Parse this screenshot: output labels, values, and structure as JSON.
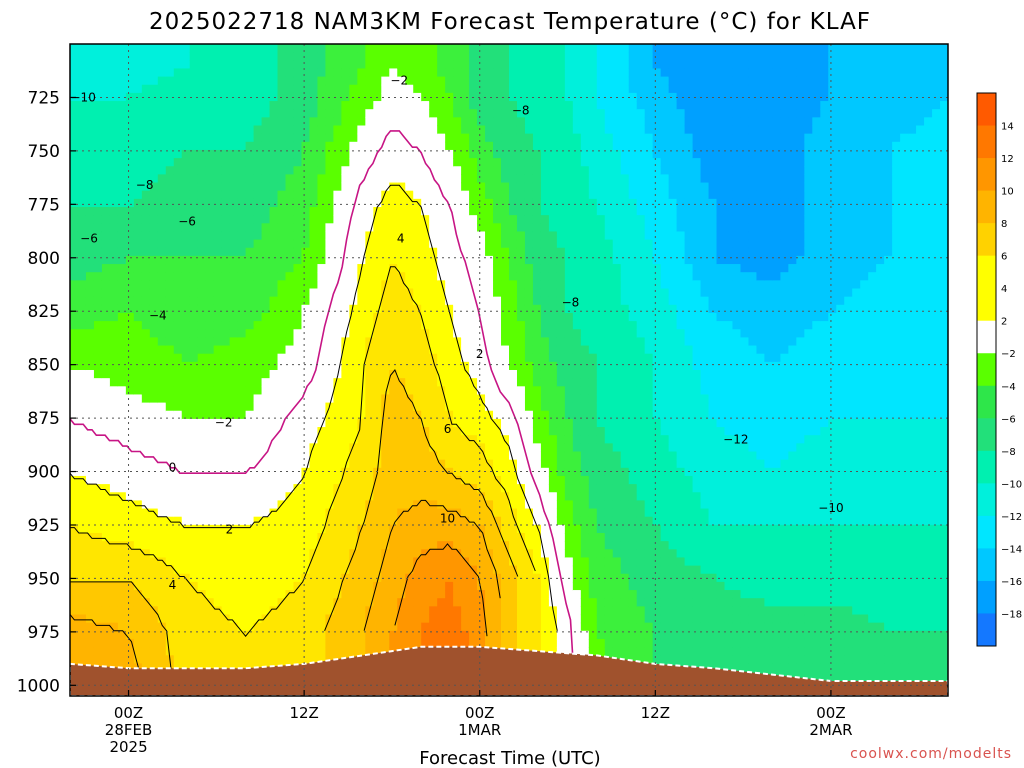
{
  "chart_data": {
    "type": "heatmap",
    "title": "2025022718 NAM3KM Forecast Temperature (°C) for KLAF",
    "xlabel": "Forecast Time (UTC)",
    "ylabel": "",
    "y_ticks": [
      "725",
      "750",
      "775",
      "800",
      "825",
      "850",
      "875",
      "900",
      "925",
      "950",
      "975",
      "1000"
    ],
    "y_range": [
      1005,
      700
    ],
    "x_range_hours": [
      -4,
      56
    ],
    "x_ticks": [
      {
        "hour": 0,
        "lines": [
          "00Z",
          "28FEB",
          "2025"
        ]
      },
      {
        "hour": 12,
        "lines": [
          "12Z"
        ]
      },
      {
        "hour": 24,
        "lines": [
          "00Z",
          "1MAR"
        ]
      },
      {
        "hour": 36,
        "lines": [
          "12Z"
        ]
      },
      {
        "hour": 48,
        "lines": [
          "00Z",
          "2MAR"
        ]
      }
    ],
    "colorbar": {
      "labels": [
        "14",
        "12",
        "10",
        "8",
        "6",
        "4",
        "2",
        "−2",
        "−4",
        "−6",
        "−8",
        "−10",
        "−12",
        "−14",
        "−16",
        "−18"
      ],
      "colors": [
        "#ff5a00",
        "#ff7800",
        "#ff9600",
        "#ffb400",
        "#ffd200",
        "#ffff00",
        "#ffff00",
        "#ffffff",
        "#5aff00",
        "#2ee64a",
        "#22e07a",
        "#00f0b0",
        "#00f0dc",
        "#00e6ff",
        "#00c8ff",
        "#00a0ff",
        "#1478ff"
      ]
    },
    "column_profiles": {
      "pressure_levels": [
        710,
        725,
        750,
        775,
        800,
        825,
        850,
        875,
        900,
        925,
        950,
        975,
        1000
      ],
      "columns": [
        {
          "hour": -4,
          "temps": [
            -11,
            -10,
            -9,
            -8,
            -7,
            -5,
            -2,
            0,
            2,
            4,
            6,
            9,
            10
          ]
        },
        {
          "hour": 0,
          "temps": [
            -11,
            -10,
            -9,
            -8,
            -6,
            -4,
            -3,
            -1,
            1,
            3,
            6,
            8,
            9
          ]
        },
        {
          "hour": 4,
          "temps": [
            -10,
            -9,
            -8,
            -7,
            -6,
            -5,
            -4,
            -2,
            0,
            2,
            4,
            5,
            5
          ]
        },
        {
          "hour": 8,
          "temps": [
            -9,
            -9,
            -8,
            -7,
            -6,
            -5,
            -3,
            -2,
            0,
            2,
            3,
            4,
            4
          ]
        },
        {
          "hour": 12,
          "temps": [
            -7,
            -7,
            -6,
            -5,
            -4,
            -2,
            -1,
            1,
            2,
            3,
            4,
            5,
            5
          ]
        },
        {
          "hour": 16,
          "temps": [
            -4,
            -3,
            -1,
            1,
            2,
            3,
            4,
            4,
            5,
            6,
            7,
            8,
            8
          ]
        },
        {
          "hour": 18,
          "temps": [
            -2,
            -1,
            1,
            3,
            4,
            5,
            6,
            7,
            7,
            8,
            9,
            10,
            10
          ]
        },
        {
          "hour": 20,
          "temps": [
            -3,
            -2,
            0,
            2,
            3,
            4,
            5,
            6,
            7,
            9,
            11,
            12,
            12
          ]
        },
        {
          "hour": 22,
          "temps": [
            -5,
            -4,
            -2,
            0,
            1,
            2,
            3,
            4,
            6,
            9,
            12,
            13,
            13
          ]
        },
        {
          "hour": 24,
          "temps": [
            -7,
            -7,
            -5,
            -3,
            -1,
            0,
            1,
            3,
            5,
            8,
            10,
            11,
            11
          ]
        },
        {
          "hour": 26,
          "temps": [
            -8,
            -8,
            -7,
            -6,
            -4,
            -3,
            -2,
            1,
            3,
            5,
            7,
            7,
            7
          ]
        },
        {
          "hour": 28,
          "temps": [
            -9,
            -9,
            -8,
            -8,
            -7,
            -6,
            -5,
            -3,
            -1,
            2,
            4,
            4,
            4
          ]
        },
        {
          "hour": 30,
          "temps": [
            -10,
            -10,
            -9,
            -9,
            -8,
            -8,
            -7,
            -6,
            -5,
            -3,
            -1,
            1,
            1
          ]
        },
        {
          "hour": 32,
          "temps": [
            -12,
            -12,
            -11,
            -10,
            -9,
            -9,
            -8,
            -8,
            -7,
            -6,
            -5,
            -4,
            -3
          ]
        },
        {
          "hour": 36,
          "temps": [
            -16,
            -15,
            -14,
            -13,
            -12,
            -11,
            -10,
            -10,
            -9,
            -8,
            -7,
            -6,
            -6
          ]
        },
        {
          "hour": 40,
          "temps": [
            -18,
            -18,
            -17,
            -16,
            -16,
            -14,
            -13,
            -12,
            -11,
            -10,
            -8,
            -7,
            -6
          ]
        },
        {
          "hour": 44,
          "temps": [
            -17,
            -17,
            -17,
            -17,
            -17,
            -15,
            -14,
            -13,
            -12,
            -10,
            -9,
            -7,
            -6
          ]
        },
        {
          "hour": 48,
          "temps": [
            -16,
            -16,
            -15,
            -15,
            -15,
            -14,
            -13,
            -12,
            -11,
            -10,
            -9,
            -7,
            -6
          ]
        },
        {
          "hour": 52,
          "temps": [
            -15,
            -15,
            -14,
            -14,
            -14,
            -13,
            -13,
            -12,
            -11,
            -10,
            -9,
            -8,
            -7
          ]
        },
        {
          "hour": 56,
          "temps": [
            -14,
            -14,
            -13,
            -13,
            -13,
            -13,
            -12,
            -12,
            -11,
            -10,
            -9,
            -8,
            -7
          ]
        }
      ]
    },
    "surface_pressure": [
      {
        "hour": -4,
        "p": 990
      },
      {
        "hour": 0,
        "p": 992
      },
      {
        "hour": 4,
        "p": 992
      },
      {
        "hour": 8,
        "p": 992
      },
      {
        "hour": 12,
        "p": 990
      },
      {
        "hour": 16,
        "p": 986
      },
      {
        "hour": 20,
        "p": 982
      },
      {
        "hour": 24,
        "p": 982
      },
      {
        "hour": 28,
        "p": 984
      },
      {
        "hour": 32,
        "p": 986
      },
      {
        "hour": 36,
        "p": 990
      },
      {
        "hour": 40,
        "p": 992
      },
      {
        "hour": 44,
        "p": 995
      },
      {
        "hour": 48,
        "p": 998
      },
      {
        "hour": 52,
        "p": 998
      },
      {
        "hour": 56,
        "p": 998
      }
    ],
    "contour_labels": [
      {
        "text": "−10",
        "hour": -3.1,
        "p": 725
      },
      {
        "text": "−8",
        "hour": 1.1,
        "p": 766
      },
      {
        "text": "−6",
        "hour": 4.0,
        "p": 783
      },
      {
        "text": "−6",
        "hour": -2.7,
        "p": 791
      },
      {
        "text": "−4",
        "hour": 2.0,
        "p": 827
      },
      {
        "text": "−2",
        "hour": 6.5,
        "p": 877
      },
      {
        "text": "0",
        "hour": 3.0,
        "p": 898
      },
      {
        "text": "2",
        "hour": 6.9,
        "p": 927
      },
      {
        "text": "4",
        "hour": 3.0,
        "p": 953
      },
      {
        "text": "−2",
        "hour": 18.5,
        "p": 717
      },
      {
        "text": "−8",
        "hour": 26.8,
        "p": 731
      },
      {
        "text": "4",
        "hour": 18.6,
        "p": 791
      },
      {
        "text": "−8",
        "hour": 30.2,
        "p": 821
      },
      {
        "text": "2",
        "hour": 24.0,
        "p": 845
      },
      {
        "text": "6",
        "hour": 21.8,
        "p": 880
      },
      {
        "text": "10",
        "hour": 21.8,
        "p": 922
      },
      {
        "text": "−12",
        "hour": 41.5,
        "p": 885
      },
      {
        "text": "−10",
        "hour": 48.0,
        "p": 917
      }
    ]
  },
  "credit": "coolwx.com/modelts"
}
